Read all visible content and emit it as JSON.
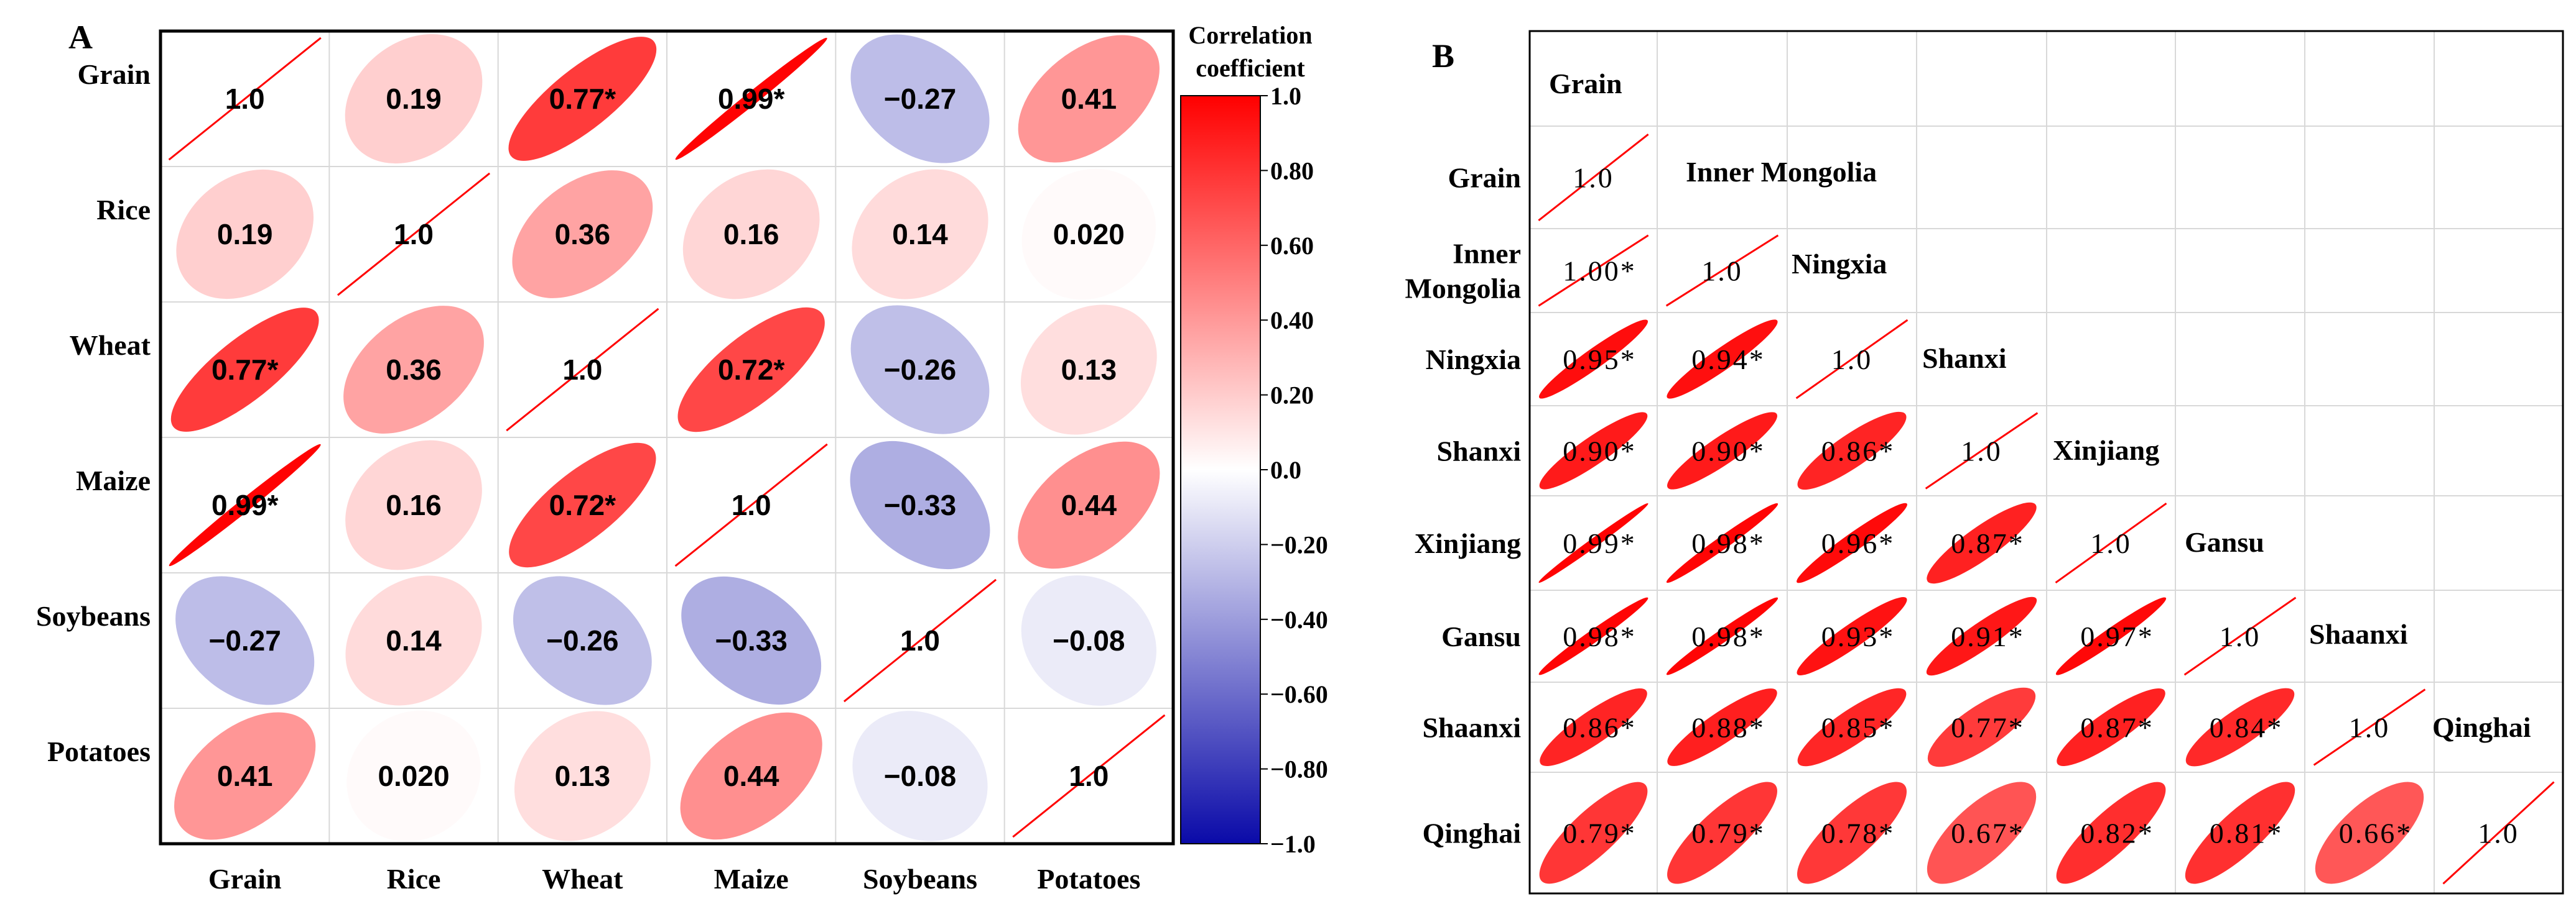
{
  "chart_data": [
    {
      "type": "heatmap",
      "panel_label": "A",
      "variables": [
        "Grain",
        "Rice",
        "Wheat",
        "Maize",
        "Soybeans",
        "Potatoes"
      ],
      "values": [
        [
          1.0,
          0.19,
          0.77,
          0.99,
          -0.27,
          0.41
        ],
        [
          0.19,
          1.0,
          0.36,
          0.16,
          0.14,
          0.02
        ],
        [
          0.77,
          0.36,
          1.0,
          0.72,
          -0.26,
          0.13
        ],
        [
          0.99,
          0.16,
          0.72,
          1.0,
          -0.33,
          0.44
        ],
        [
          -0.27,
          0.14,
          -0.26,
          -0.33,
          1.0,
          -0.08
        ],
        [
          0.41,
          0.02,
          0.13,
          0.44,
          -0.08,
          1.0
        ]
      ],
      "labels": [
        [
          "1.0",
          "0.19",
          "0.77*",
          "0.99*",
          "−0.27",
          "0.41"
        ],
        [
          "0.19",
          "1.0",
          "0.36",
          "0.16",
          "0.14",
          "0.020"
        ],
        [
          "0.77*",
          "0.36",
          "1.0",
          "0.72*",
          "−0.26",
          "0.13"
        ],
        [
          "0.99*",
          "0.16",
          "0.72*",
          "1.0",
          "−0.33",
          "0.44"
        ],
        [
          "−0.27",
          "0.14",
          "−0.26",
          "−0.33",
          "1.0",
          "−0.08"
        ],
        [
          "0.41",
          "0.020",
          "0.13",
          "0.44",
          "−0.08",
          "1.0"
        ]
      ],
      "colorbar": {
        "title_lines": [
          "Correlation",
          "coefficient"
        ],
        "ticks": [
          "1.0",
          "0.80",
          "0.60",
          "0.40",
          "0.20",
          "0.0",
          "−0.20",
          "−0.40",
          "−0.60",
          "−0.80",
          "−1.0"
        ],
        "range": [
          -1.0,
          1.0
        ],
        "colors": {
          "low": "#0a0aa8",
          "mid": "#ffffff",
          "high": "#ff0000"
        }
      }
    },
    {
      "type": "heatmap",
      "panel_label": "B",
      "variables": [
        "Grain",
        "Inner Mongolia",
        "Ningxia",
        "Shanxi",
        "Xinjiang",
        "Gansu",
        "Shaanxi",
        "Qinghai"
      ],
      "row_labels": [
        [
          "Grain"
        ],
        [
          "Inner",
          "Mongolia"
        ],
        [
          "Ningxia"
        ],
        [
          "Shanxi"
        ],
        [
          "Xinjiang"
        ],
        [
          "Gansu"
        ],
        [
          "Shaanxi"
        ],
        [
          "Qinghai"
        ]
      ],
      "values": [
        [
          1.0
        ],
        [
          1.0,
          1.0
        ],
        [
          0.95,
          0.94,
          1.0
        ],
        [
          0.9,
          0.9,
          0.86,
          1.0
        ],
        [
          0.99,
          0.98,
          0.96,
          0.87,
          1.0
        ],
        [
          0.98,
          0.98,
          0.93,
          0.91,
          0.97,
          1.0
        ],
        [
          0.86,
          0.88,
          0.85,
          0.77,
          0.87,
          0.84,
          1.0
        ],
        [
          0.79,
          0.79,
          0.78,
          0.67,
          0.82,
          0.81,
          0.66,
          1.0
        ]
      ],
      "labels": [
        [
          "1.0"
        ],
        [
          "1.00*",
          "1.0"
        ],
        [
          "0.95*",
          "0.94*",
          "1.0"
        ],
        [
          "0.90*",
          "0.90*",
          "0.86*",
          "1.0"
        ],
        [
          "0.99*",
          "0.98*",
          "0.96*",
          "0.87*",
          "1.0"
        ],
        [
          "0.98*",
          "0.98*",
          "0.93*",
          "0.91*",
          "0.97*",
          "1.0"
        ],
        [
          "0.86*",
          "0.88*",
          "0.85*",
          "0.77*",
          "0.87*",
          "0.84*",
          "1.0"
        ],
        [
          "0.79*",
          "0.79*",
          "0.78*",
          "0.67*",
          "0.82*",
          "0.81*",
          "0.66*",
          "1.0"
        ]
      ]
    }
  ]
}
